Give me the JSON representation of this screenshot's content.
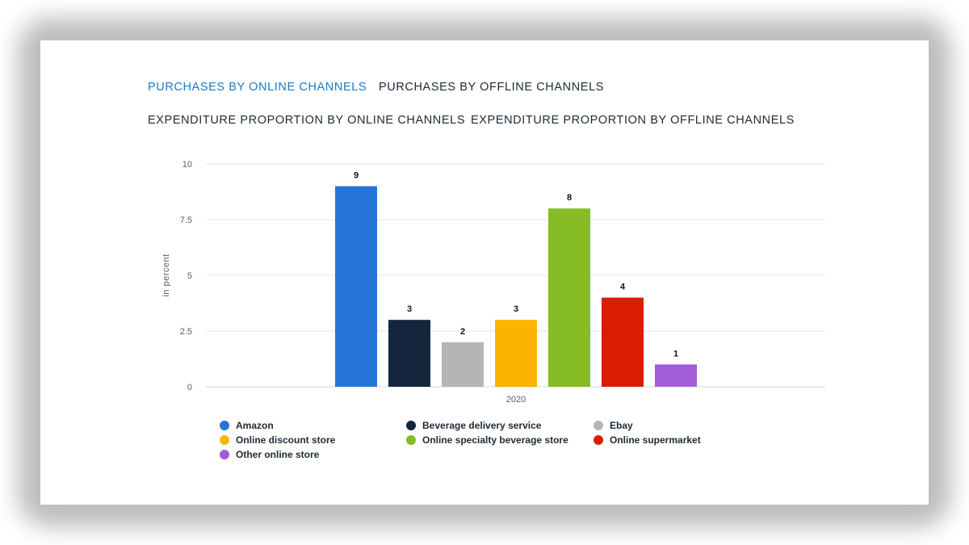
{
  "tabs": [
    {
      "label": "PURCHASES BY ONLINE CHANNELS",
      "active": true
    },
    {
      "label": "PURCHASES BY OFFLINE CHANNELS",
      "active": false
    },
    {
      "label": "EXPENDITURE PROPORTION BY ONLINE CHANNELS",
      "active": false
    },
    {
      "label": "EXPENDITURE PROPORTION BY OFFLINE CHANNELS",
      "active": false
    }
  ],
  "colors": {
    "active_tab": "#1c7ac4",
    "text": "#1e2a36",
    "grid": "#e6e6e6"
  },
  "chart_data": {
    "type": "bar",
    "categories": [
      "2020"
    ],
    "series": [
      {
        "name": "Amazon",
        "values": [
          9
        ],
        "color": "#2676d9"
      },
      {
        "name": "Beverage delivery service",
        "values": [
          3
        ],
        "color": "#14253e"
      },
      {
        "name": "Ebay",
        "values": [
          2
        ],
        "color": "#b5b5b5"
      },
      {
        "name": "Online discount store",
        "values": [
          3
        ],
        "color": "#fbb500"
      },
      {
        "name": "Online specialty beverage store",
        "values": [
          8
        ],
        "color": "#86bc25"
      },
      {
        "name": "Online supermarket",
        "values": [
          4
        ],
        "color": "#d91c02"
      },
      {
        "name": "Other online store",
        "values": [
          1
        ],
        "color": "#a15dd6"
      }
    ],
    "ylabel": "in percent",
    "ylim": [
      0,
      10
    ],
    "yticks": [
      "0",
      "2.5",
      "5",
      "7.5",
      "10"
    ],
    "grid": true,
    "legend_position": "bottom"
  }
}
